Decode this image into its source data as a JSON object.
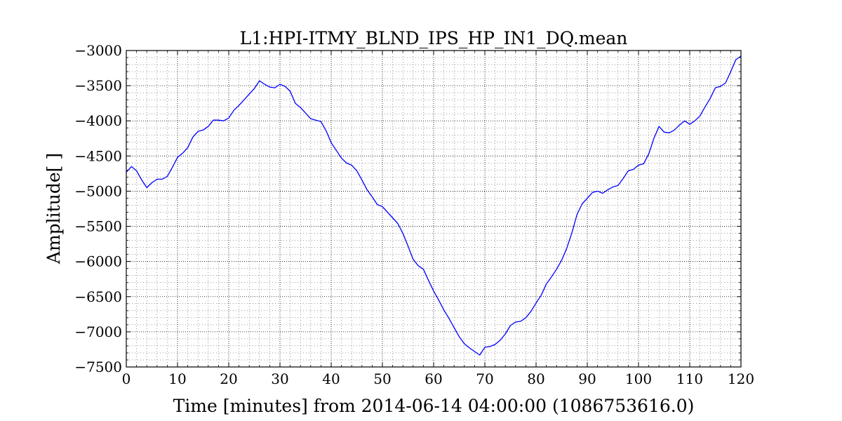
{
  "chart_data": {
    "type": "line",
    "title": "L1:HPI-ITMY_BLND_IPS_HP_IN1_DQ.mean",
    "xlabel": "Time [minutes] from 2014-06-14 04:00:00 (1086753616.0)",
    "ylabel": "Amplitude[ ]",
    "xlim": [
      0,
      120
    ],
    "ylim": [
      -7500,
      -3000
    ],
    "x_ticks": [
      0,
      10,
      20,
      30,
      40,
      50,
      60,
      70,
      80,
      90,
      100,
      110,
      120
    ],
    "x_tick_labels": [
      "0",
      "10",
      "20",
      "30",
      "40",
      "50",
      "60",
      "70",
      "80",
      "90",
      "100",
      "110",
      "120"
    ],
    "y_ticks": [
      -7500,
      -7000,
      -6500,
      -6000,
      -5500,
      -5000,
      -4500,
      -4000,
      -3500,
      -3000
    ],
    "y_tick_labels": [
      "−7500",
      "−7000",
      "−6500",
      "−6000",
      "−5500",
      "−5000",
      "−4500",
      "−4000",
      "−3500",
      "−3000"
    ],
    "grid": true,
    "minor_grid": true,
    "line_color": "#0000ff",
    "series": [
      {
        "x": [
          0,
          1,
          2,
          3,
          4,
          5,
          6,
          7,
          8,
          9,
          10,
          11,
          12,
          13,
          14,
          15,
          16,
          17,
          18,
          19,
          20,
          21,
          22,
          23,
          24,
          25,
          26,
          27,
          28,
          29,
          30,
          31,
          32,
          33,
          34,
          35,
          36,
          37,
          38,
          39,
          40,
          41,
          42,
          43,
          44,
          45,
          46,
          47,
          48,
          49,
          50,
          51,
          52,
          53,
          54,
          55,
          56,
          57,
          58,
          59,
          60,
          61,
          62,
          63,
          64,
          65,
          66,
          67,
          68,
          69,
          70,
          71,
          72,
          73,
          74,
          75,
          76,
          77,
          78,
          79,
          80,
          81,
          82,
          83,
          84,
          85,
          86,
          87,
          88,
          89,
          90,
          91,
          92,
          93,
          94,
          95,
          96,
          97,
          98,
          99,
          100,
          101,
          102,
          103,
          104,
          105,
          106,
          107,
          108,
          109,
          110,
          111,
          112,
          113,
          114,
          115,
          116,
          117,
          118,
          119,
          120
        ],
        "values": [
          -4730,
          -4650,
          -4710,
          -4840,
          -4950,
          -4880,
          -4830,
          -4830,
          -4790,
          -4660,
          -4520,
          -4460,
          -4380,
          -4230,
          -4150,
          -4130,
          -4080,
          -3990,
          -3990,
          -4000,
          -3960,
          -3850,
          -3780,
          -3700,
          -3620,
          -3540,
          -3430,
          -3480,
          -3520,
          -3530,
          -3480,
          -3510,
          -3580,
          -3750,
          -3810,
          -3890,
          -3970,
          -3990,
          -4010,
          -4140,
          -4310,
          -4420,
          -4530,
          -4600,
          -4630,
          -4710,
          -4840,
          -4980,
          -5080,
          -5190,
          -5220,
          -5300,
          -5380,
          -5460,
          -5600,
          -5780,
          -5970,
          -6060,
          -6110,
          -6270,
          -6420,
          -6550,
          -6690,
          -6810,
          -6940,
          -7070,
          -7170,
          -7230,
          -7280,
          -7330,
          -7220,
          -7210,
          -7180,
          -7120,
          -7030,
          -6910,
          -6860,
          -6850,
          -6800,
          -6710,
          -6590,
          -6480,
          -6320,
          -6220,
          -6110,
          -5980,
          -5810,
          -5590,
          -5330,
          -5180,
          -5100,
          -5020,
          -5000,
          -5030,
          -4980,
          -4940,
          -4920,
          -4820,
          -4710,
          -4690,
          -4630,
          -4610,
          -4470,
          -4250,
          -4080,
          -4160,
          -4170,
          -4130,
          -4060,
          -4000,
          -4050,
          -4000,
          -3930,
          -3800,
          -3680,
          -3530,
          -3510,
          -3460,
          -3300,
          -3130,
          -3080
        ]
      }
    ]
  }
}
